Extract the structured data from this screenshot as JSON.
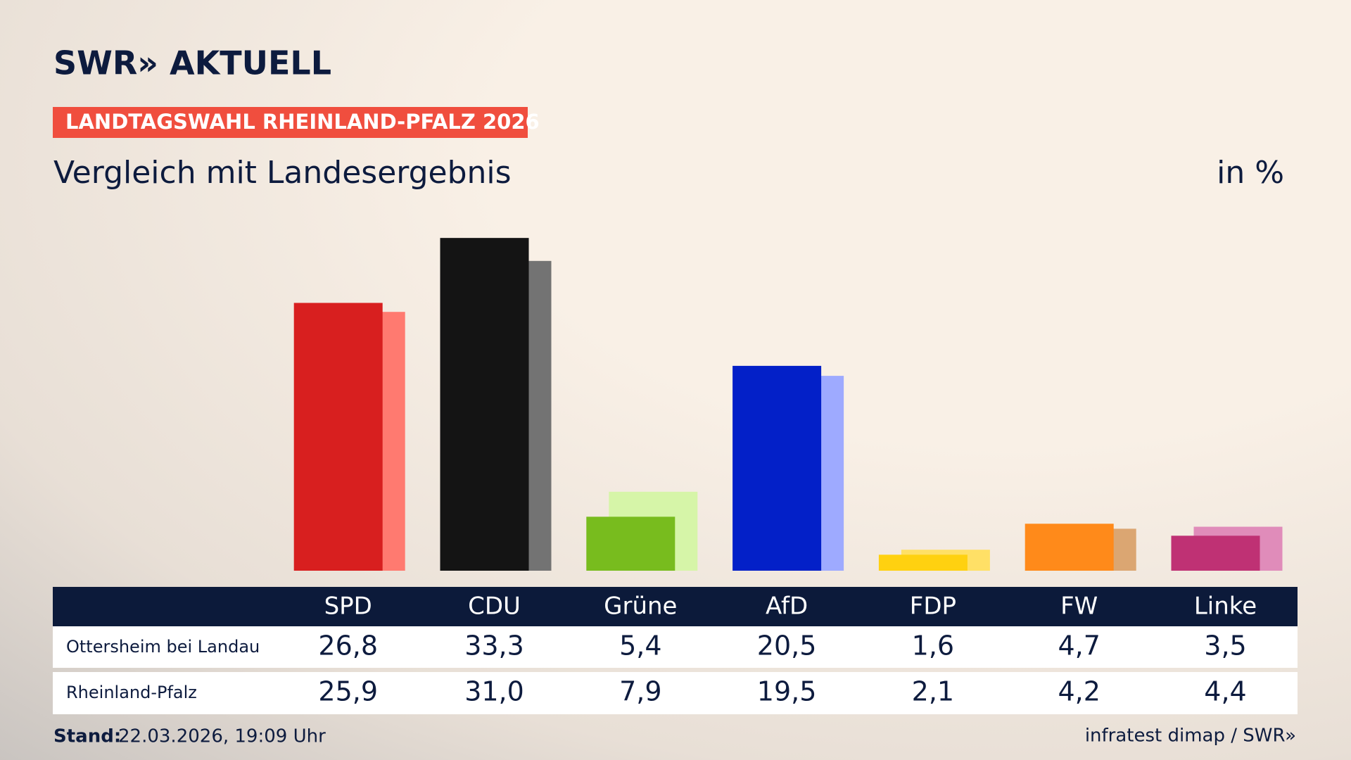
{
  "header": {
    "brand": "SWR» AKTUELL",
    "banner": "LANDTAGSWAHL RHEINLAND-PFALZ 2026"
  },
  "chart_data": {
    "type": "bar",
    "title": "Vergleich mit Landesergebnis",
    "unit": "in %",
    "categories": [
      "SPD",
      "CDU",
      "Grüne",
      "AfD",
      "FDP",
      "FW",
      "Linke"
    ],
    "series": [
      {
        "name": "Ottersheim bei Landau",
        "colors": [
          "#d81f1f",
          "#141414",
          "#78bc1e",
          "#0320c8",
          "#ffd110",
          "#ff8a1a",
          "#bf3174"
        ],
        "values": [
          26.8,
          33.3,
          5.4,
          20.5,
          1.6,
          4.7,
          3.5
        ],
        "value_labels": [
          "26,8",
          "33,3",
          "5,4",
          "20,5",
          "1,6",
          "4,7",
          "3,5"
        ]
      },
      {
        "name": "Rheinland-Pfalz",
        "colors": [
          "#ff7a70",
          "#737373",
          "#d6f5a8",
          "#9eaaff",
          "#ffe066",
          "#dba672",
          "#e08cba"
        ],
        "values": [
          25.9,
          31.0,
          7.9,
          19.5,
          2.1,
          4.2,
          4.4
        ],
        "value_labels": [
          "25,9",
          "31,0",
          "7,9",
          "19,5",
          "2,1",
          "4,2",
          "4,4"
        ]
      }
    ]
  },
  "footer": {
    "stand_label": "Stand:",
    "stand": "22.03.2026, 19:09 Uhr",
    "source": "infratest dimap / SWR»"
  }
}
